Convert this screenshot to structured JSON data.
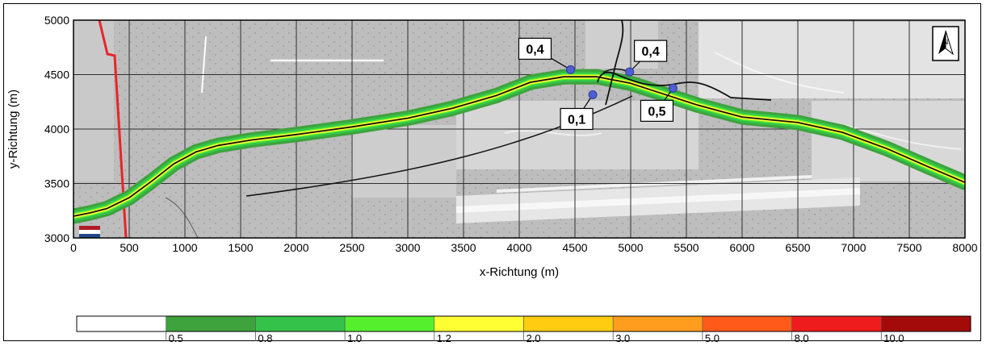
{
  "map": {
    "xlabel": "x-Richtung (m)",
    "ylabel": "y-Richtung (m)",
    "xlim": [
      0,
      8000
    ],
    "ylim": [
      3000,
      5000
    ],
    "x_ticks": [
      "0",
      "500",
      "1000",
      "1500",
      "2000",
      "2500",
      "3000",
      "3500",
      "4000",
      "4500",
      "5000",
      "5500",
      "6000",
      "6500",
      "7000",
      "7500",
      "8000"
    ],
    "y_ticks": [
      "3000",
      "3500",
      "4000",
      "4500",
      "5000"
    ],
    "grid": true,
    "basemap": "grey topographic map (forest, settlement, airfield runway)",
    "north_arrow_label": "N",
    "border_line_color": "#e8252a"
  },
  "road_path": [
    [
      0,
      3200
    ],
    [
      150,
      3230
    ],
    [
      300,
      3270
    ],
    [
      500,
      3370
    ],
    [
      700,
      3520
    ],
    [
      900,
      3680
    ],
    [
      1100,
      3790
    ],
    [
      1300,
      3850
    ],
    [
      1600,
      3900
    ],
    [
      2000,
      3950
    ],
    [
      2500,
      4020
    ],
    [
      3000,
      4100
    ],
    [
      3400,
      4190
    ],
    [
      3800,
      4310
    ],
    [
      4100,
      4430
    ],
    [
      4400,
      4480
    ],
    [
      4700,
      4480
    ],
    [
      5000,
      4420
    ],
    [
      5300,
      4320
    ],
    [
      5600,
      4220
    ],
    [
      6000,
      4110
    ],
    [
      6500,
      4060
    ],
    [
      6900,
      3970
    ],
    [
      7300,
      3820
    ],
    [
      7700,
      3640
    ],
    [
      8000,
      3510
    ]
  ],
  "receptor_points": [
    {
      "x": 4460,
      "y": 4545,
      "value": "0,4"
    },
    {
      "x": 4990,
      "y": 4525,
      "value": "0,4"
    },
    {
      "x": 4660,
      "y": 4315,
      "value": "0,1"
    },
    {
      "x": 5380,
      "y": 4375,
      "value": "0,5"
    }
  ],
  "legend": {
    "labels": [
      "0,5",
      "0,8",
      "1,0",
      "1,2",
      "2,0",
      "3,0",
      "5,0",
      "8,0",
      "10,0"
    ],
    "colors": [
      "#ffffff",
      "#3ea33c",
      "#35c24a",
      "#55ef2e",
      "#ffff33",
      "#ffcc11",
      "#ff9d1f",
      "#ff5a1a",
      "#ee1c1c",
      "#a30b0b"
    ]
  }
}
